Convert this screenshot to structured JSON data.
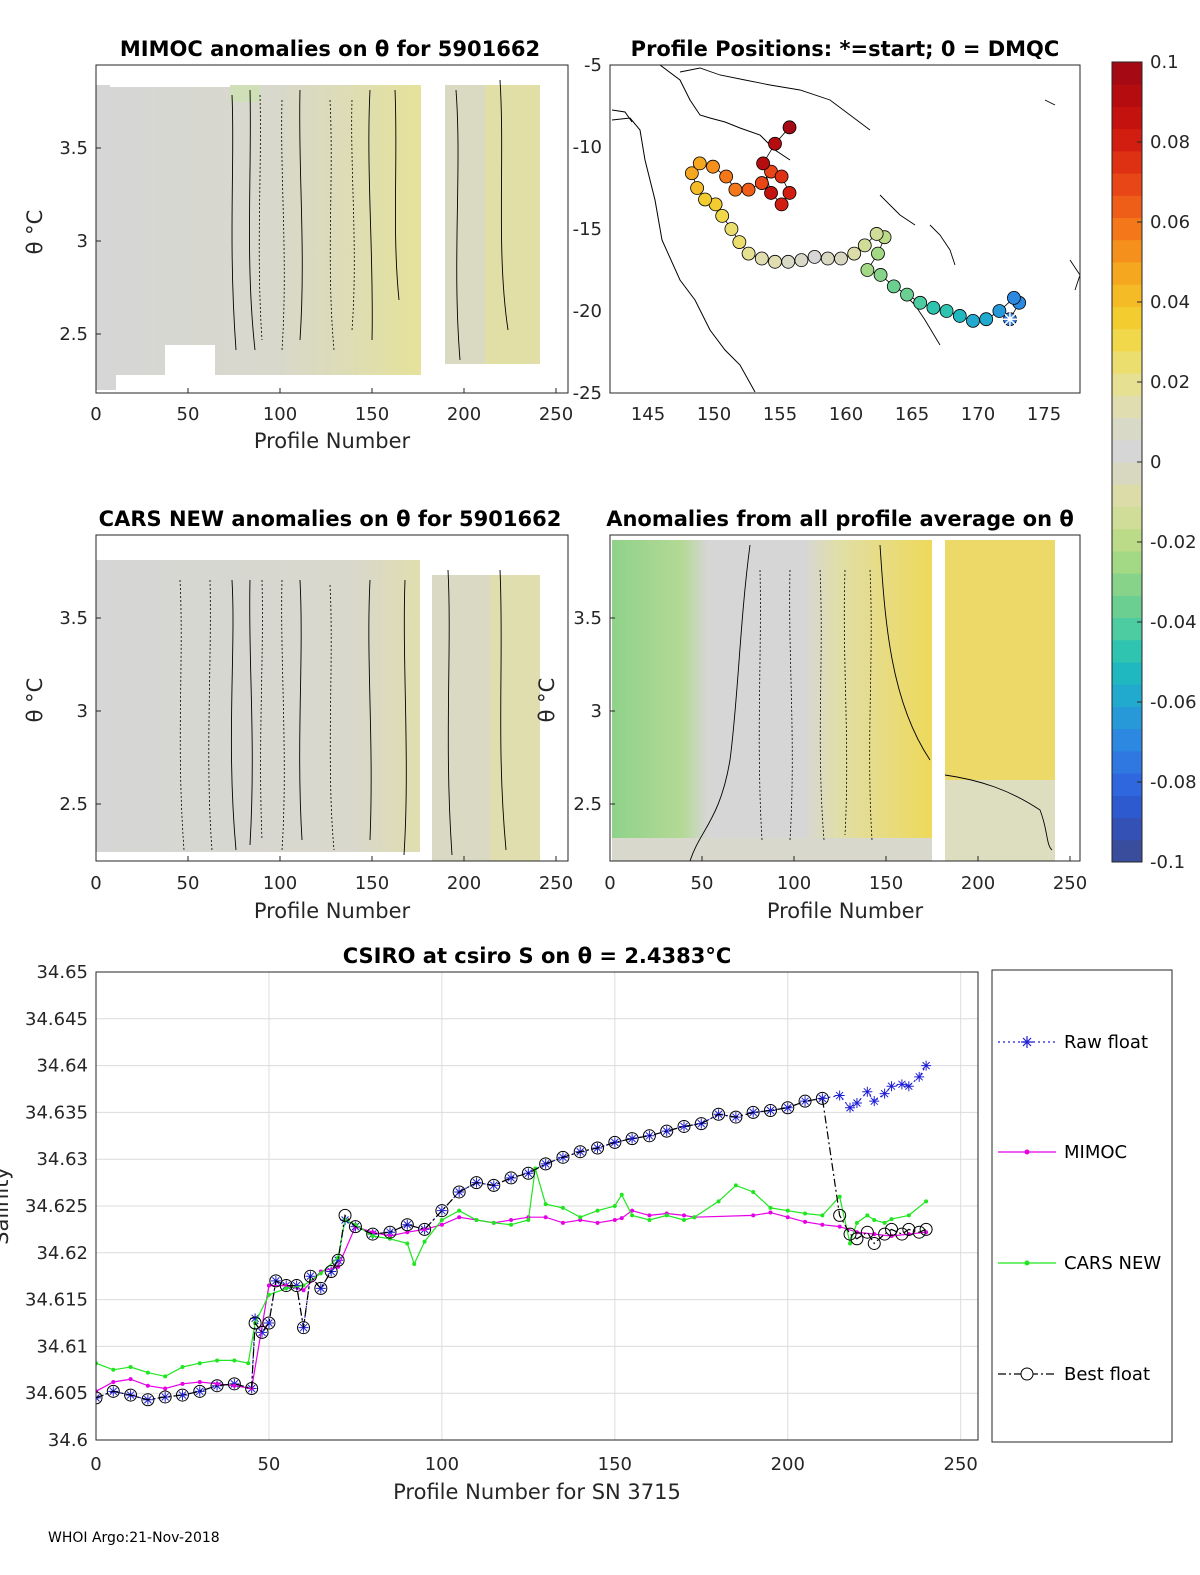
{
  "footer": "WHOI Argo:21-Nov-2018",
  "colorbar": {
    "ticks": [
      "0.1",
      "0.08",
      "0.06",
      "0.04",
      "0.02",
      "0",
      "-0.02",
      "-0.04",
      "-0.06",
      "-0.08",
      "-0.1"
    ],
    "colors": [
      "#3a4d9c",
      "#3451b6",
      "#2e5ad0",
      "#2f67de",
      "#2f78e2",
      "#2c88e0",
      "#2799d8",
      "#22aace",
      "#1fb8c0",
      "#2ec4b0",
      "#4ccca0",
      "#6ccf92",
      "#88d38a",
      "#a3d884",
      "#bcdb88",
      "#d0dd98",
      "#dcdca8",
      "#d8d8c0",
      "#d6d6d6",
      "#d9d9c8",
      "#e0deb0",
      "#e6e092",
      "#ecde6e",
      "#f0d84a",
      "#f3cc30",
      "#f5bb26",
      "#f6a720",
      "#f6901c",
      "#f4781a",
      "#ef5e18",
      "#e84616",
      "#de3012",
      "#d21e10",
      "#c4120e",
      "#b50c10",
      "#a50a14"
    ]
  },
  "panel_mimoc": {
    "title": "MIMOC anomalies on θ  for 5901662",
    "ylabel": "θ °C",
    "xlabel": "Profile Number",
    "xticks": [
      "0",
      "50",
      "100",
      "150",
      "200",
      "250"
    ],
    "yticks": [
      "3.5",
      "3",
      "2.5"
    ]
  },
  "panel_map": {
    "title": "Profile Positions: *=start; 0 = DMQC",
    "xticks": [
      "145",
      "150",
      "155",
      "160",
      "165",
      "170",
      "175"
    ],
    "yticks": [
      "-5",
      "-10",
      "-15",
      "-20",
      "-25"
    ]
  },
  "panel_cars": {
    "title": "CARS NEW anomalies on θ for 5901662",
    "ylabel": "θ °C",
    "xlabel": "Profile Number",
    "xticks": [
      "0",
      "50",
      "100",
      "150",
      "200",
      "250"
    ],
    "yticks": [
      "3.5",
      "3",
      "2.5"
    ]
  },
  "panel_avg": {
    "title": "Anomalies from all profile average on θ",
    "ylabel": "θ °C",
    "xlabel": "Profile Number",
    "xticks": [
      "0",
      "50",
      "100",
      "150",
      "200",
      "250"
    ],
    "yticks": [
      "3.5",
      "3",
      "2.5"
    ]
  },
  "chart_data": {
    "type": "line",
    "title": "CSIRO at csiro S on θ = 2.4383°C",
    "xlabel": "Profile Number for SN 3715",
    "ylabel": "Salinity",
    "xlim": [
      0,
      255
    ],
    "ylim": [
      34.6,
      34.65
    ],
    "xticks": [
      "0",
      "50",
      "100",
      "150",
      "200",
      "250"
    ],
    "yticks": [
      "34.65",
      "34.645",
      "34.64",
      "34.635",
      "34.63",
      "34.625",
      "34.62",
      "34.615",
      "34.61",
      "34.605",
      "34.6"
    ],
    "grid": true,
    "legend_position": "right-outside",
    "series": [
      {
        "name": "Raw float",
        "color": "#1f1fd6",
        "marker": "asterisk",
        "line": "dotted",
        "x": [
          0,
          5,
          10,
          15,
          20,
          25,
          30,
          35,
          40,
          45,
          46,
          48,
          50,
          52,
          55,
          58,
          60,
          62,
          65,
          68,
          70,
          72,
          75,
          80,
          85,
          90,
          95,
          100,
          105,
          110,
          115,
          120,
          125,
          130,
          135,
          140,
          145,
          150,
          155,
          160,
          165,
          170,
          175,
          180,
          185,
          190,
          195,
          200,
          205,
          210,
          215,
          218,
          220,
          223,
          225,
          228,
          230,
          233,
          235,
          238,
          240
        ],
        "y": [
          34.6045,
          34.6052,
          34.6048,
          34.6043,
          34.6046,
          34.6048,
          34.6052,
          34.6058,
          34.606,
          34.6055,
          34.613,
          34.6115,
          34.6125,
          34.617,
          34.6165,
          34.6165,
          34.612,
          34.6175,
          34.6162,
          34.618,
          34.6192,
          34.6235,
          34.6228,
          34.622,
          34.6222,
          34.623,
          34.6225,
          34.6245,
          34.6265,
          34.6275,
          34.6272,
          34.628,
          34.6285,
          34.6295,
          34.6302,
          34.6308,
          34.6312,
          34.6318,
          34.6322,
          34.6325,
          34.633,
          34.6335,
          34.6338,
          34.6348,
          34.6345,
          34.635,
          34.6352,
          34.6355,
          34.6362,
          34.6365,
          34.6368,
          34.6355,
          34.636,
          34.6372,
          34.6362,
          34.637,
          34.6378,
          34.638,
          34.6378,
          34.6388,
          34.64
        ]
      },
      {
        "name": "MIMOC",
        "color": "#e600e6",
        "marker": "dot",
        "line": "solid",
        "x": [
          0,
          5,
          10,
          15,
          20,
          25,
          30,
          35,
          40,
          45,
          50,
          55,
          60,
          65,
          70,
          75,
          80,
          85,
          90,
          95,
          100,
          105,
          110,
          115,
          120,
          125,
          130,
          135,
          140,
          145,
          150,
          152,
          155,
          160,
          165,
          170,
          173,
          190,
          195,
          200,
          205,
          210,
          215,
          220,
          225,
          230,
          235,
          240
        ],
        "y": [
          34.6052,
          34.6062,
          34.6065,
          34.6058,
          34.6055,
          34.606,
          34.6062,
          34.606,
          34.6058,
          34.6055,
          34.6165,
          34.6165,
          34.616,
          34.618,
          34.6185,
          34.6228,
          34.6222,
          34.6218,
          34.6222,
          34.6225,
          34.623,
          34.6238,
          34.6235,
          34.6232,
          34.6235,
          34.6238,
          34.6238,
          34.6232,
          34.6235,
          34.6232,
          34.6235,
          34.6237,
          34.6245,
          34.624,
          34.6242,
          34.624,
          34.6238,
          34.624,
          34.6243,
          34.6238,
          34.6233,
          34.623,
          34.6228,
          34.6222,
          34.622,
          34.6218,
          34.622,
          34.6222
        ]
      },
      {
        "name": "CARS NEW",
        "color": "#1fe61f",
        "marker": "dot",
        "line": "solid",
        "x": [
          0,
          5,
          10,
          15,
          20,
          25,
          30,
          35,
          40,
          44,
          46,
          50,
          55,
          60,
          65,
          70,
          72,
          75,
          80,
          85,
          90,
          92,
          95,
          100,
          105,
          110,
          115,
          120,
          125,
          127,
          130,
          135,
          140,
          145,
          150,
          152,
          155,
          160,
          165,
          170,
          173,
          180,
          185,
          190,
          195,
          200,
          205,
          210,
          215,
          218,
          220,
          223,
          225,
          228,
          230,
          235,
          240
        ],
        "y": [
          34.6082,
          34.6075,
          34.6078,
          34.6072,
          34.6068,
          34.6078,
          34.6082,
          34.6085,
          34.6085,
          34.6082,
          34.6125,
          34.6155,
          34.6162,
          34.6165,
          34.6178,
          34.6195,
          34.6235,
          34.623,
          34.6218,
          34.6215,
          34.621,
          34.6188,
          34.6212,
          34.6235,
          34.6245,
          34.6235,
          34.6232,
          34.623,
          34.6235,
          34.629,
          34.6252,
          34.6248,
          34.6238,
          34.6245,
          34.625,
          34.6262,
          34.624,
          34.6235,
          34.624,
          34.6235,
          34.6238,
          34.6255,
          34.6272,
          34.6265,
          34.6248,
          34.6245,
          34.6242,
          34.624,
          34.626,
          34.621,
          34.6232,
          34.624,
          34.6235,
          34.6232,
          34.6236,
          34.624,
          34.6255
        ]
      },
      {
        "name": "Best float",
        "color": "#000000",
        "marker": "open-circle",
        "line": "dashdot",
        "x": [
          0,
          5,
          10,
          15,
          20,
          25,
          30,
          35,
          40,
          45,
          46,
          48,
          50,
          52,
          55,
          58,
          60,
          62,
          65,
          68,
          70,
          72,
          75,
          80,
          85,
          90,
          95,
          100,
          105,
          110,
          115,
          120,
          125,
          130,
          135,
          140,
          145,
          150,
          155,
          160,
          165,
          170,
          175,
          180,
          185,
          190,
          195,
          200,
          205,
          210,
          215,
          218,
          220,
          223,
          225,
          228,
          230,
          233,
          235,
          238,
          240
        ],
        "y": [
          34.6045,
          34.6052,
          34.6048,
          34.6043,
          34.6046,
          34.6048,
          34.6052,
          34.6058,
          34.606,
          34.6055,
          34.6125,
          34.6115,
          34.6125,
          34.617,
          34.6165,
          34.6165,
          34.612,
          34.6175,
          34.6162,
          34.618,
          34.6192,
          34.624,
          34.6228,
          34.622,
          34.6222,
          34.623,
          34.6225,
          34.6245,
          34.6265,
          34.6275,
          34.6272,
          34.628,
          34.6285,
          34.6295,
          34.6302,
          34.6308,
          34.6312,
          34.6318,
          34.6322,
          34.6325,
          34.633,
          34.6335,
          34.6338,
          34.6348,
          34.6345,
          34.635,
          34.6352,
          34.6355,
          34.6362,
          34.6365,
          34.624,
          34.622,
          34.6215,
          34.6222,
          34.621,
          34.622,
          34.6225,
          34.622,
          34.6225,
          34.6222,
          34.6225
        ]
      }
    ]
  }
}
